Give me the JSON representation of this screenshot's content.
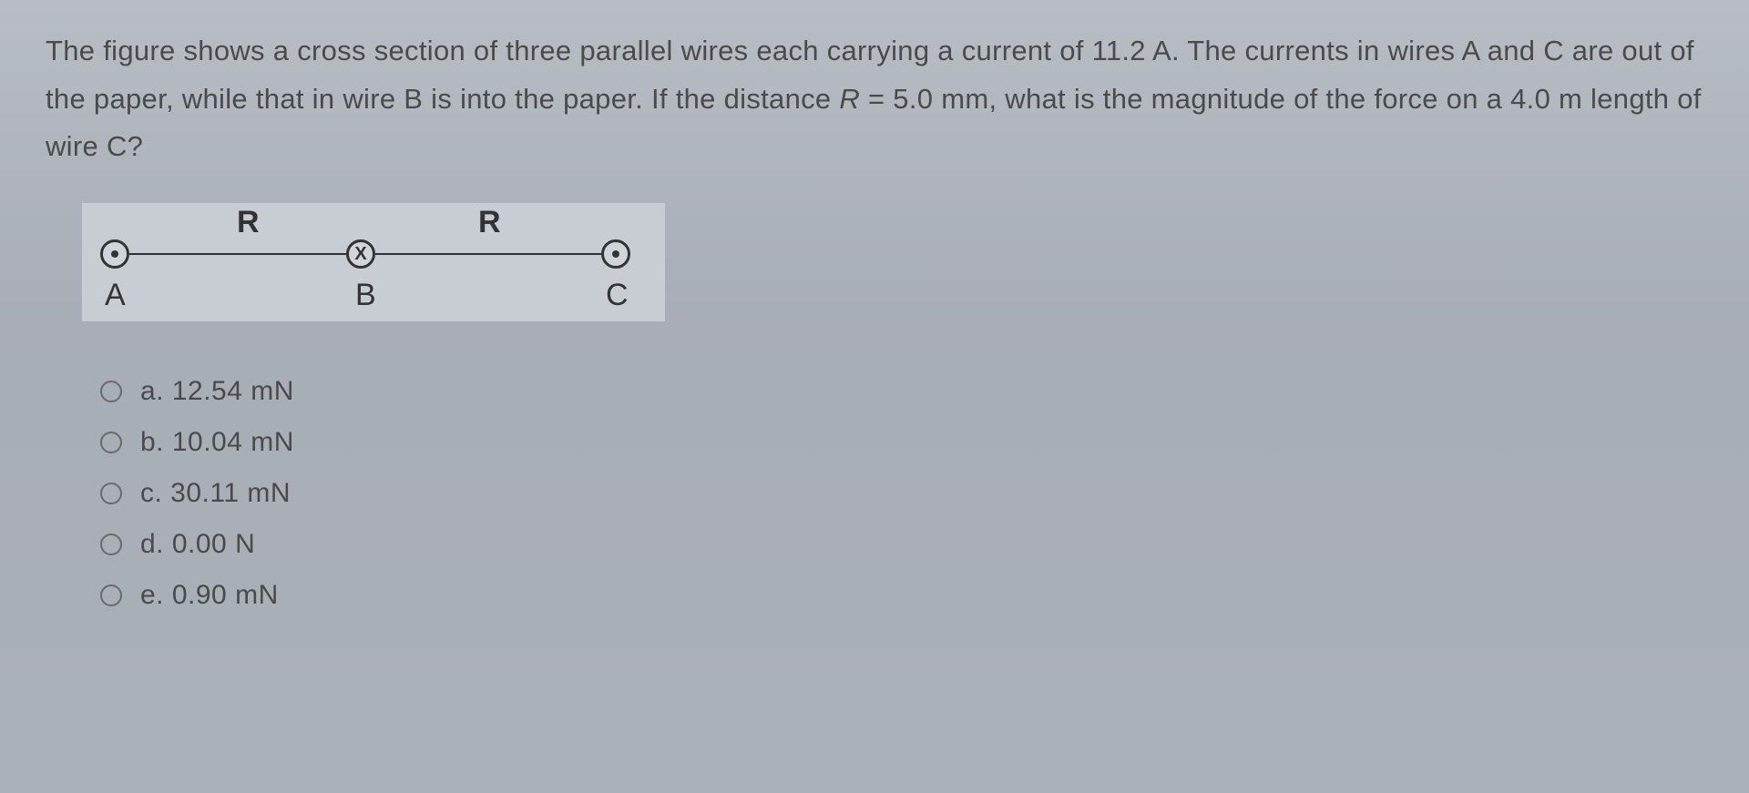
{
  "question": {
    "text_part1": "The figure shows a cross section of three parallel wires each carrying a current of 11.2 A. The currents in wires A and C are out of the paper, while that in wire B is into the paper. If the distance ",
    "text_var": "R",
    "text_part2": " = 5.0 mm, what is the magnitude of the force on a 4.0 m length of wire C?"
  },
  "diagram": {
    "r_label": "R",
    "wire_a_label": "A",
    "wire_b_label": "B",
    "wire_c_label": "C",
    "wire_a_direction": "out",
    "wire_b_direction": "in",
    "wire_c_direction": "out",
    "wire_b_symbol": "X",
    "background_color": "#c8cdd4",
    "line_color": "#333333"
  },
  "options": [
    {
      "letter": "a",
      "text": "a. 12.54 mN"
    },
    {
      "letter": "b",
      "text": "b. 10.04 mN"
    },
    {
      "letter": "c",
      "text": "c. 30.11 mN"
    },
    {
      "letter": "d",
      "text": "d. 0.00 N"
    },
    {
      "letter": "e",
      "text": "e. 0.90 mN"
    }
  ],
  "styling": {
    "body_bg_start": "#b8bdc4",
    "body_bg_end": "#aab0b8",
    "text_color": "#4a4a4a",
    "question_fontsize": 31,
    "option_fontsize": 30,
    "label_fontsize": 34
  }
}
